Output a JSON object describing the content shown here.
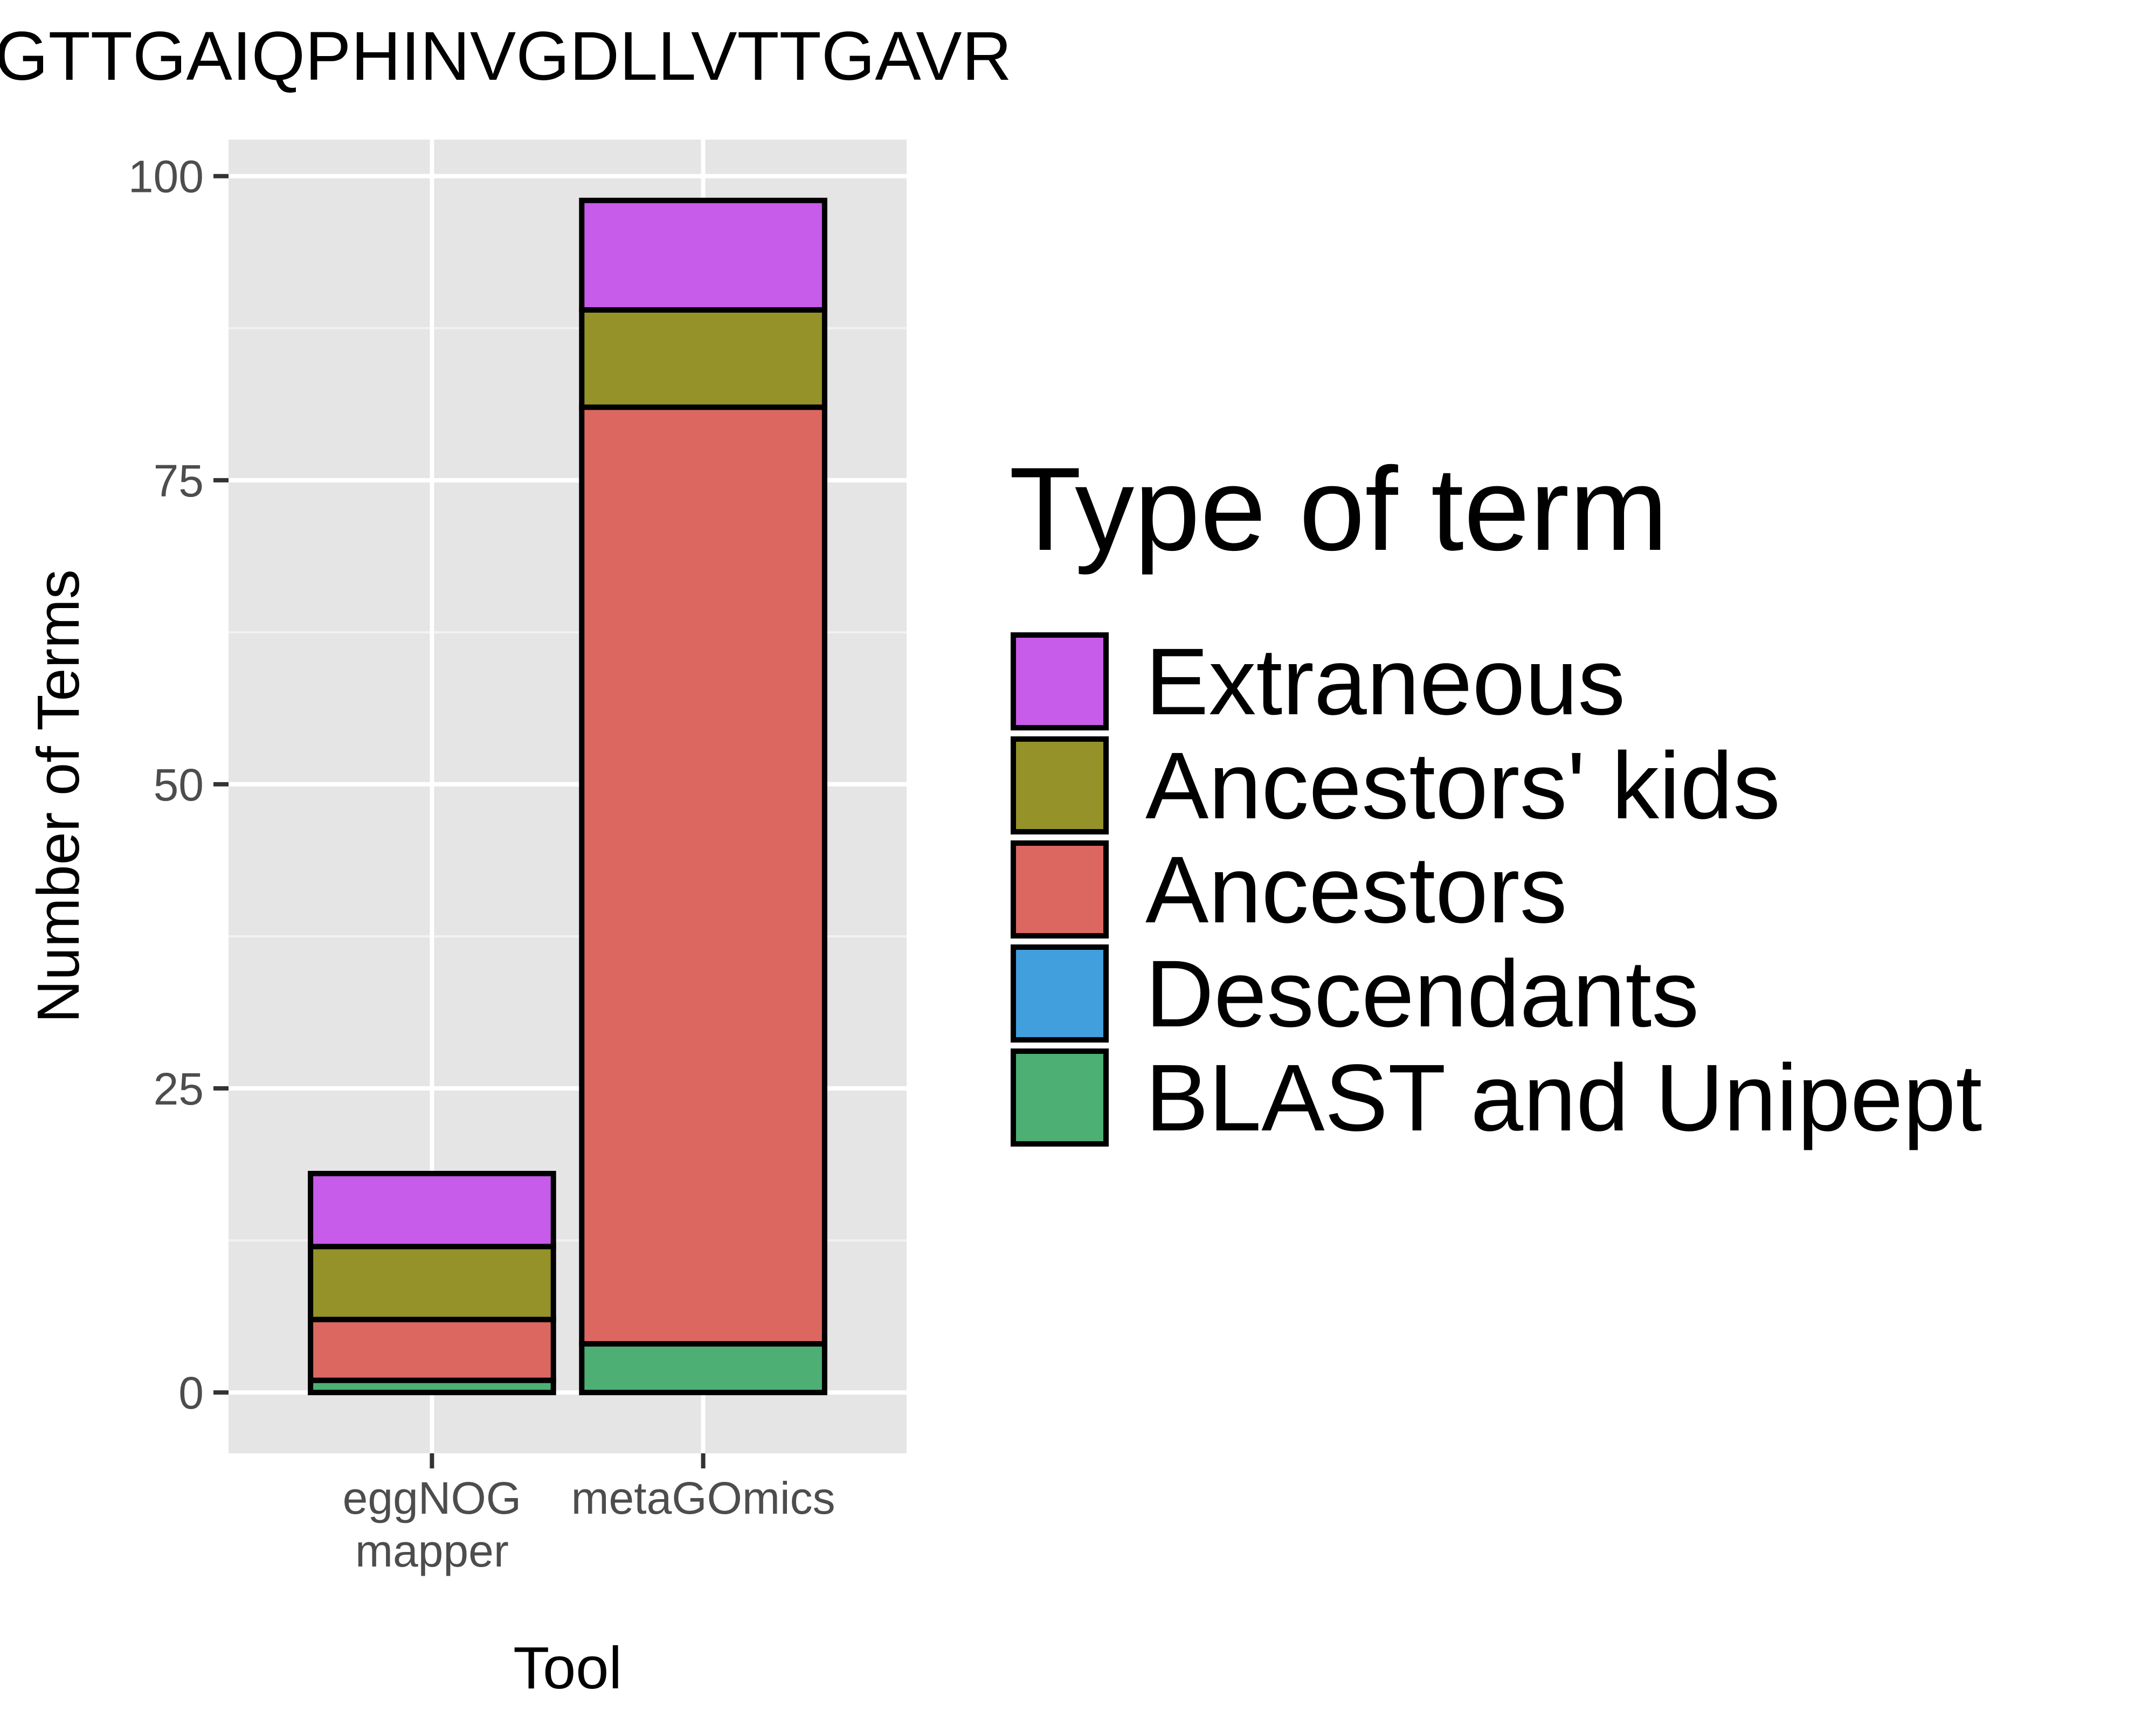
{
  "chart_data": {
    "type": "bar",
    "stacked": true,
    "title": "GTTGAIQPHINVGDLLVTTGAVR",
    "xlabel": "Tool",
    "ylabel": "Number of Terms",
    "categories": [
      [
        "eggNOG",
        "mapper"
      ],
      [
        "metaGOmics"
      ]
    ],
    "ylim": [
      -5,
      103
    ],
    "yticks": [
      0,
      25,
      50,
      75,
      100
    ],
    "grid": true,
    "legend": {
      "title": "Type of term",
      "position": "right"
    },
    "series": [
      {
        "name": "BLAST and Unipept",
        "color": "#4daf74",
        "values": [
          1,
          4
        ]
      },
      {
        "name": "Descendants",
        "color": "#419fdd",
        "values": [
          0,
          0
        ]
      },
      {
        "name": "Ancestors",
        "color": "#dc6761",
        "values": [
          5,
          77
        ]
      },
      {
        "name": "Ancestors' kids",
        "color": "#949228",
        "values": [
          6,
          8
        ]
      },
      {
        "name": "Extraneous",
        "color": "#c75bea",
        "values": [
          6,
          9
        ]
      }
    ],
    "legend_order": [
      "Extraneous",
      "Ancestors' kids",
      "Ancestors",
      "Descendants",
      "BLAST and Unipept"
    ]
  }
}
